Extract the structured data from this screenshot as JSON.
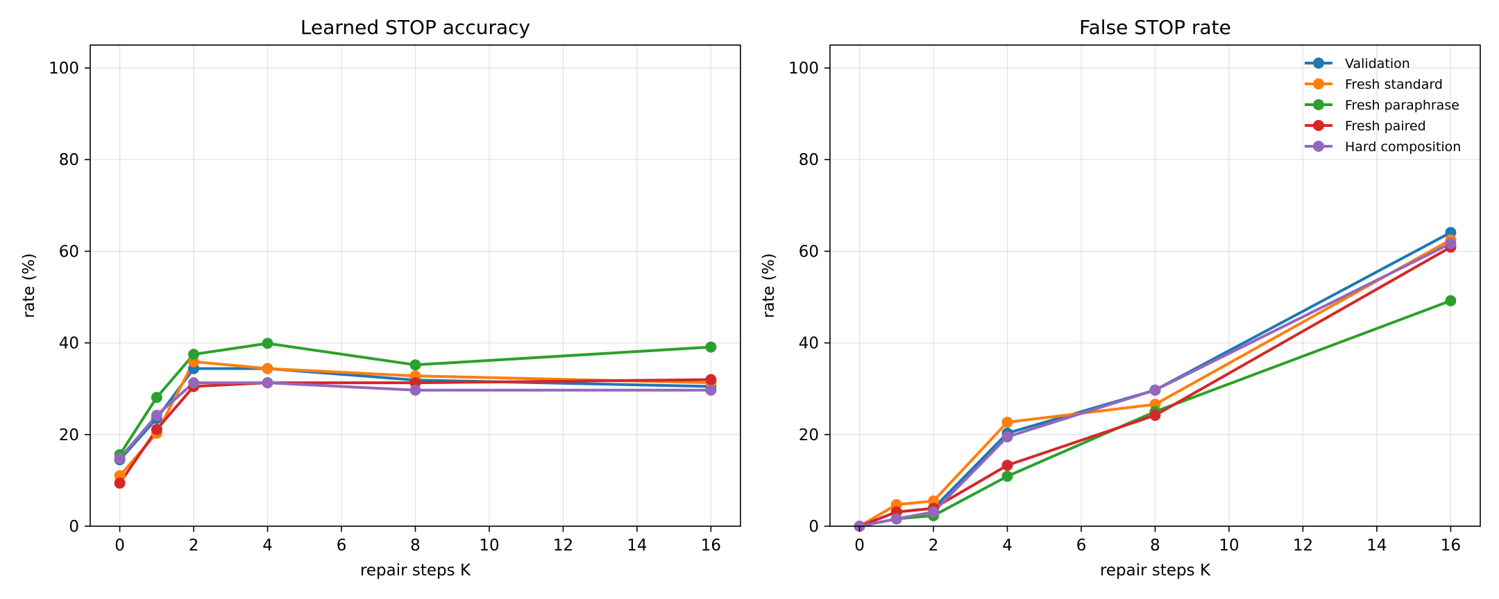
{
  "chart_data": [
    {
      "type": "line",
      "title": "Learned STOP accuracy",
      "xlabel": "repair steps K",
      "ylabel": "rate (%)",
      "xlim": [
        -0.8,
        16.8
      ],
      "ylim": [
        0,
        105
      ],
      "xticks": [
        0,
        2,
        4,
        6,
        8,
        10,
        12,
        14,
        16
      ],
      "yticks": [
        0,
        20,
        40,
        60,
        80,
        100
      ],
      "grid": true,
      "legend": null,
      "x": [
        0,
        1,
        2,
        4,
        8,
        16
      ],
      "series": [
        {
          "name": "Validation",
          "color": "#1f77b4",
          "values": [
            14.5,
            23.5,
            34.4,
            34.4,
            31.9,
            30.5
          ]
        },
        {
          "name": "Fresh standard",
          "color": "#ff7f0e",
          "values": [
            11.0,
            20.3,
            35.9,
            34.4,
            32.8,
            31.3
          ]
        },
        {
          "name": "Fresh paraphrase",
          "color": "#2ca02c",
          "values": [
            15.6,
            28.1,
            37.5,
            39.9,
            35.2,
            39.1
          ]
        },
        {
          "name": "Fresh paired",
          "color": "#d62728",
          "values": [
            9.4,
            21.1,
            30.5,
            31.3,
            31.3,
            32.0
          ]
        },
        {
          "name": "Hard composition",
          "color": "#9467bd",
          "values": [
            14.8,
            24.2,
            31.3,
            31.3,
            29.7,
            29.7
          ]
        }
      ]
    },
    {
      "type": "line",
      "title": "False STOP rate",
      "xlabel": "repair steps K",
      "ylabel": "rate (%)",
      "xlim": [
        -0.8,
        16.8
      ],
      "ylim": [
        0,
        105
      ],
      "xticks": [
        0,
        2,
        4,
        6,
        8,
        10,
        12,
        14,
        16
      ],
      "yticks": [
        0,
        20,
        40,
        60,
        80,
        100
      ],
      "grid": true,
      "legend": "top-right",
      "x": [
        0,
        1,
        2,
        4,
        8,
        16
      ],
      "series": [
        {
          "name": "Validation",
          "color": "#1f77b4",
          "values": [
            0.0,
            3.1,
            3.9,
            20.3,
            29.7,
            64.1
          ]
        },
        {
          "name": "Fresh standard",
          "color": "#ff7f0e",
          "values": [
            0.0,
            4.7,
            5.5,
            22.7,
            26.6,
            62.5
          ]
        },
        {
          "name": "Fresh paraphrase",
          "color": "#2ca02c",
          "values": [
            0.0,
            1.6,
            2.3,
            10.9,
            25.0,
            49.2
          ]
        },
        {
          "name": "Fresh paired",
          "color": "#d62728",
          "values": [
            0.0,
            3.1,
            3.9,
            13.3,
            24.2,
            60.9
          ]
        },
        {
          "name": "Hard composition",
          "color": "#9467bd",
          "values": [
            0.0,
            1.6,
            3.1,
            19.5,
            29.7,
            61.7
          ]
        }
      ]
    }
  ]
}
